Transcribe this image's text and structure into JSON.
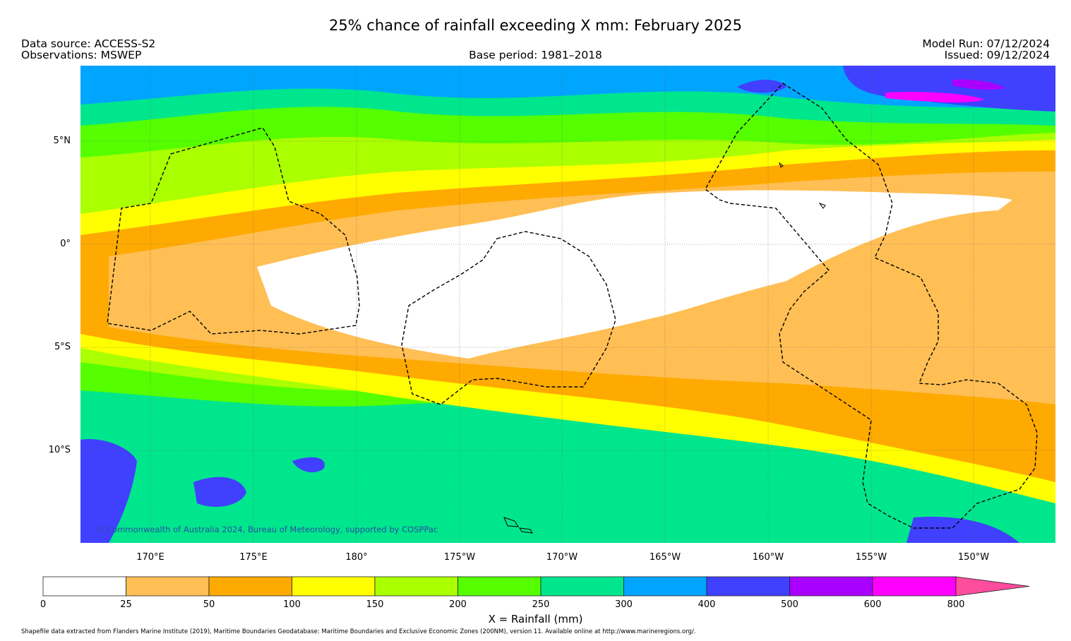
{
  "header": {
    "title": "25% chance of rainfall exceeding X mm: February 2025",
    "data_source": "Data source: ACCESS-S2",
    "observations": "Observations: MSWEP",
    "base_period": "Base period: 1981–2018",
    "model_run": "Model Run: 07/12/2024",
    "issued": "Issued: 09/12/2024"
  },
  "map": {
    "lat_labels": [
      "5°N",
      "0°",
      "5°S",
      "10°S"
    ],
    "lon_labels": [
      "170°E",
      "175°E",
      "180°",
      "175°W",
      "170°W",
      "165°W",
      "160°W",
      "155°W",
      "150°W"
    ],
    "copyright": "© Commonwealth of Australia 2024, Bureau of Meteorology, supported by COSPPac",
    "colors": [
      "#ffffff",
      "#ffbf55",
      "#ffaa00",
      "#ffff00",
      "#aaff00",
      "#55ff00",
      "#00e68c",
      "#00a5ff",
      "#4040ff",
      "#aa00ff",
      "#ff00ff",
      "#ff4d9e"
    ]
  },
  "colorbar": {
    "tick_labels": [
      "0",
      "25",
      "50",
      "100",
      "150",
      "200",
      "250",
      "300",
      "400",
      "500",
      "600",
      "800"
    ],
    "xlabel": "X = Rainfall (mm)"
  },
  "footer": "Shapefile data extracted from Flanders Marine Institute (2019), Maritime Boundaries Geodatabase: Maritime Boundaries and Exclusive Economic Zones (200NM), version 11. Available online at http://www.marineregions.org/."
}
